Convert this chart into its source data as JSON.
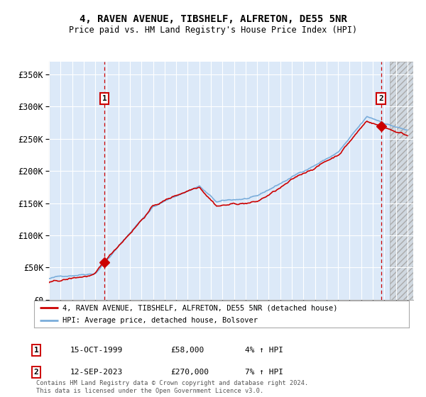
{
  "title": "4, RAVEN AVENUE, TIBSHELF, ALFRETON, DE55 5NR",
  "subtitle": "Price paid vs. HM Land Registry's House Price Index (HPI)",
  "ylabel_ticks": [
    "£0",
    "£50K",
    "£100K",
    "£150K",
    "£200K",
    "£250K",
    "£300K",
    "£350K"
  ],
  "ytick_vals": [
    0,
    50000,
    100000,
    150000,
    200000,
    250000,
    300000,
    350000
  ],
  "ylim": [
    0,
    370000
  ],
  "xlim_start": 1995.0,
  "xlim_end": 2026.5,
  "sale1_x": 1999.79,
  "sale1_y": 58000,
  "sale2_x": 2023.71,
  "sale2_y": 270000,
  "sale1_date": "15-OCT-1999",
  "sale1_price": "£58,000",
  "sale1_hpi": "4% ↑ HPI",
  "sale2_date": "12-SEP-2023",
  "sale2_price": "£270,000",
  "sale2_hpi": "7% ↑ HPI",
  "legend_line1": "4, RAVEN AVENUE, TIBSHELF, ALFRETON, DE55 5NR (detached house)",
  "legend_line2": "HPI: Average price, detached house, Bolsover",
  "footer": "Contains HM Land Registry data © Crown copyright and database right 2024.\nThis data is licensed under the Open Government Licence v3.0.",
  "plot_bg": "#dce9f8",
  "red_color": "#cc0000",
  "blue_color": "#7aaddb",
  "hatch_start": 2024.5
}
